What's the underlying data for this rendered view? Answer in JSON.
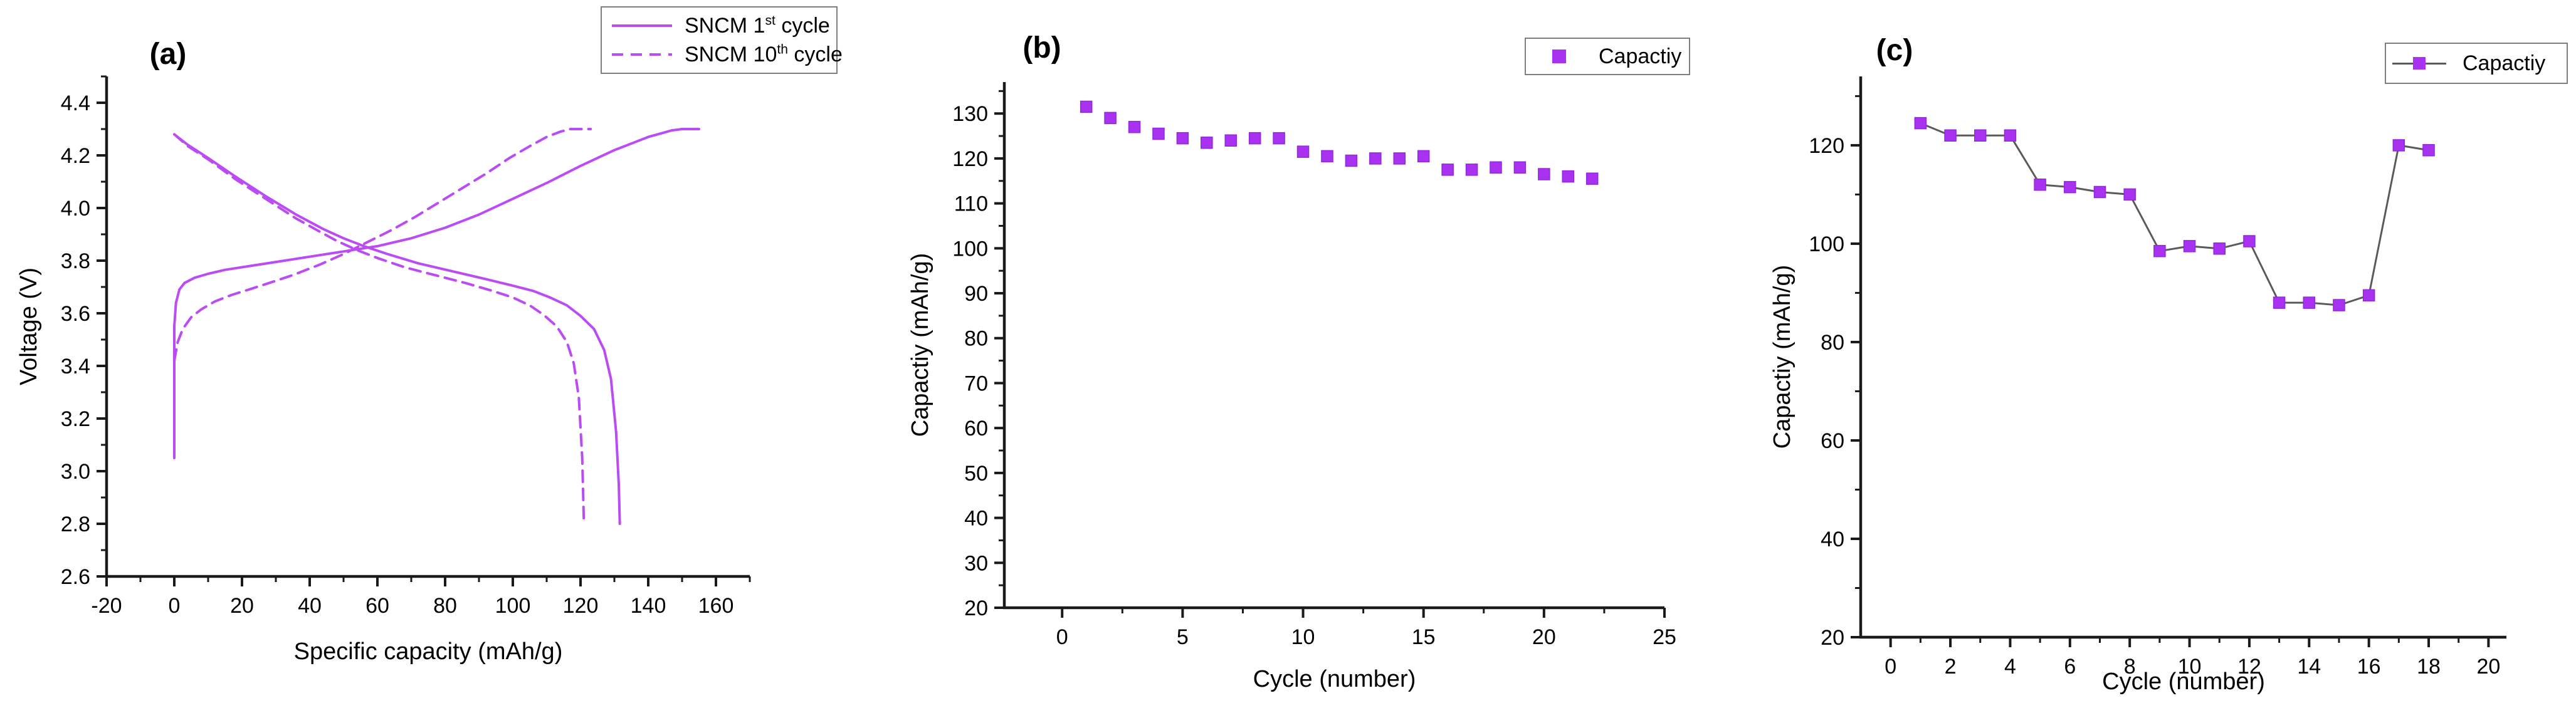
{
  "figure_description": "Three electrochemistry charts: (a) charge-discharge voltage profiles, (b) cycling capacity scatter, (c) cycling capacity line plot",
  "colors": {
    "curve": "#bb4bf2",
    "marker": "#a832f0",
    "marker_edge": "#9326e0",
    "connector": "#5a5a5a",
    "axis": "#1a1a1a",
    "text": "#000000",
    "legend_border": "#7f7f7f",
    "background": "#ffffff"
  },
  "chart_data": [
    {
      "type": "line",
      "title": "(a)",
      "xlabel": "Specific capacity (mAh/g)",
      "ylabel": "Voltage (V)",
      "xlim": [
        -20,
        170
      ],
      "ylim": [
        2.6,
        4.5
      ],
      "xticks": [
        -20,
        0,
        20,
        40,
        60,
        80,
        100,
        120,
        140,
        160
      ],
      "xtick_labels": [
        "-20",
        "0",
        "20",
        "40",
        "60",
        "80",
        "100",
        "120",
        "140",
        "160"
      ],
      "xminor_step": 10,
      "yticks": [
        2.6,
        2.8,
        3.0,
        3.2,
        3.4,
        3.6,
        3.8,
        4.0,
        4.2,
        4.4
      ],
      "ytick_labels": [
        "2.6",
        "2.8",
        "3.0",
        "3.2",
        "3.4",
        "3.6",
        "3.8",
        "4.0",
        "4.2",
        "4.4"
      ],
      "yminor_step": 0.1,
      "grid": false,
      "legend_position": "top-right",
      "legend": [
        {
          "pre": "SNCM 1",
          "sup": "st",
          "post": " cycle",
          "style": "solid"
        },
        {
          "pre": "SNCM 10",
          "sup": "th",
          "post": " cycle",
          "style": "dashed"
        }
      ],
      "series": [
        {
          "name": "SNCM 1st cycle charge",
          "dash": "solid",
          "points": [
            [
              0,
              3.05
            ],
            [
              0,
              3.55
            ],
            [
              0.5,
              3.64
            ],
            [
              1.5,
              3.69
            ],
            [
              3,
              3.715
            ],
            [
              6,
              3.735
            ],
            [
              10,
              3.75
            ],
            [
              15,
              3.765
            ],
            [
              20,
              3.775
            ],
            [
              30,
              3.795
            ],
            [
              40,
              3.815
            ],
            [
              50,
              3.835
            ],
            [
              60,
              3.855
            ],
            [
              70,
              3.885
            ],
            [
              80,
              3.925
            ],
            [
              90,
              3.975
            ],
            [
              100,
              4.035
            ],
            [
              110,
              4.095
            ],
            [
              120,
              4.16
            ],
            [
              130,
              4.22
            ],
            [
              140,
              4.27
            ],
            [
              147,
              4.295
            ],
            [
              150,
              4.3
            ],
            [
              155,
              4.3
            ]
          ]
        },
        {
          "name": "SNCM 1st cycle discharge",
          "dash": "solid",
          "points": [
            [
              0,
              4.28
            ],
            [
              4,
              4.24
            ],
            [
              10,
              4.19
            ],
            [
              18,
              4.12
            ],
            [
              27,
              4.045
            ],
            [
              36,
              3.975
            ],
            [
              44,
              3.92
            ],
            [
              50,
              3.885
            ],
            [
              56,
              3.855
            ],
            [
              63,
              3.825
            ],
            [
              72,
              3.79
            ],
            [
              82,
              3.76
            ],
            [
              92,
              3.73
            ],
            [
              100,
              3.705
            ],
            [
              106,
              3.685
            ],
            [
              111,
              3.66
            ],
            [
              116,
              3.63
            ],
            [
              120,
              3.59
            ],
            [
              124,
              3.54
            ],
            [
              127,
              3.46
            ],
            [
              129,
              3.35
            ],
            [
              130.5,
              3.15
            ],
            [
              131.3,
              2.95
            ],
            [
              131.6,
              2.8
            ]
          ]
        },
        {
          "name": "SNCM 10th cycle charge",
          "dash": "dashed",
          "points": [
            [
              0,
              3.42
            ],
            [
              1,
              3.49
            ],
            [
              2.5,
              3.54
            ],
            [
              5,
              3.585
            ],
            [
              8,
              3.615
            ],
            [
              12,
              3.645
            ],
            [
              17,
              3.67
            ],
            [
              22,
              3.69
            ],
            [
              28,
              3.715
            ],
            [
              35,
              3.745
            ],
            [
              43,
              3.785
            ],
            [
              50,
              3.825
            ],
            [
              57,
              3.87
            ],
            [
              64,
              3.915
            ],
            [
              71,
              3.965
            ],
            [
              78,
              4.02
            ],
            [
              85,
              4.075
            ],
            [
              92,
              4.13
            ],
            [
              99,
              4.19
            ],
            [
              105,
              4.235
            ],
            [
              110,
              4.27
            ],
            [
              114,
              4.29
            ],
            [
              117,
              4.3
            ],
            [
              123,
              4.3
            ]
          ]
        },
        {
          "name": "SNCM 10th cycle discharge",
          "dash": "dashed",
          "points": [
            [
              0,
              4.28
            ],
            [
              4,
              4.235
            ],
            [
              10,
              4.185
            ],
            [
              18,
              4.11
            ],
            [
              27,
              4.035
            ],
            [
              36,
              3.96
            ],
            [
              43,
              3.91
            ],
            [
              48,
              3.875
            ],
            [
              54,
              3.84
            ],
            [
              60,
              3.81
            ],
            [
              68,
              3.775
            ],
            [
              77,
              3.745
            ],
            [
              86,
              3.715
            ],
            [
              94,
              3.685
            ],
            [
              100,
              3.66
            ],
            [
              105,
              3.63
            ],
            [
              109,
              3.595
            ],
            [
              113,
              3.55
            ],
            [
              116,
              3.49
            ],
            [
              118,
              3.41
            ],
            [
              119.5,
              3.28
            ],
            [
              120.5,
              3.05
            ],
            [
              121,
              2.8
            ]
          ]
        }
      ]
    },
    {
      "type": "scatter",
      "title": "(b)",
      "xlabel": "Cycle (number)",
      "ylabel": "Capactiy (mAh/g)",
      "xlim": [
        -2.4,
        25
      ],
      "ylim": [
        20,
        137
      ],
      "xticks": [
        0,
        5,
        10,
        15,
        20,
        25
      ],
      "xtick_labels": [
        "0",
        "5",
        "10",
        "15",
        "20",
        "25"
      ],
      "xminor_step": 2.5,
      "yticks": [
        20,
        30,
        40,
        50,
        60,
        70,
        80,
        90,
        100,
        110,
        120,
        130
      ],
      "ytick_labels": [
        "20",
        "30",
        "40",
        "50",
        "60",
        "70",
        "80",
        "90",
        "100",
        "110",
        "120",
        "130"
      ],
      "yminor_step": 5,
      "grid": false,
      "legend_position": "top-right",
      "legend": [
        {
          "label": "Capactiy",
          "style": "square"
        }
      ],
      "x": [
        1,
        2,
        3,
        4,
        5,
        6,
        7,
        8,
        9,
        10,
        11,
        12,
        13,
        14,
        15,
        16,
        17,
        18,
        19,
        20,
        21,
        22
      ],
      "values": [
        131.5,
        129,
        127,
        125.5,
        124.5,
        123.5,
        124,
        124.5,
        124.5,
        121.5,
        120.5,
        119.5,
        120,
        120,
        120.5,
        117.5,
        117.5,
        118,
        118,
        116.5,
        116,
        115.5
      ]
    },
    {
      "type": "line-scatter",
      "title": "(c)",
      "xlabel": "Cycle (number)",
      "ylabel": "Capactiy (mAh/g)",
      "xlim": [
        -1,
        20.6
      ],
      "ylim": [
        20,
        134
      ],
      "xticks": [
        0,
        2,
        4,
        6,
        8,
        10,
        12,
        14,
        16,
        18,
        20
      ],
      "xtick_labels": [
        "0",
        "2",
        "4",
        "6",
        "8",
        "10",
        "12",
        "14",
        "16",
        "18",
        "20"
      ],
      "xminor_step": 1,
      "yticks": [
        20,
        40,
        60,
        80,
        100,
        120
      ],
      "ytick_labels": [
        "20",
        "40",
        "60",
        "80",
        "100",
        "120"
      ],
      "yminor_step": 10,
      "grid": false,
      "legend_position": "top-right",
      "legend": [
        {
          "label": "Capactiy",
          "style": "line-square"
        }
      ],
      "x": [
        1,
        2,
        3,
        4,
        5,
        6,
        7,
        8,
        9,
        10,
        11,
        12,
        13,
        14,
        15,
        16,
        17,
        18
      ],
      "values": [
        124.5,
        122,
        122,
        122,
        112,
        111.5,
        110.5,
        110,
        98.5,
        99.5,
        99,
        100.5,
        88,
        88,
        87.5,
        89.5,
        120,
        119
      ]
    }
  ]
}
